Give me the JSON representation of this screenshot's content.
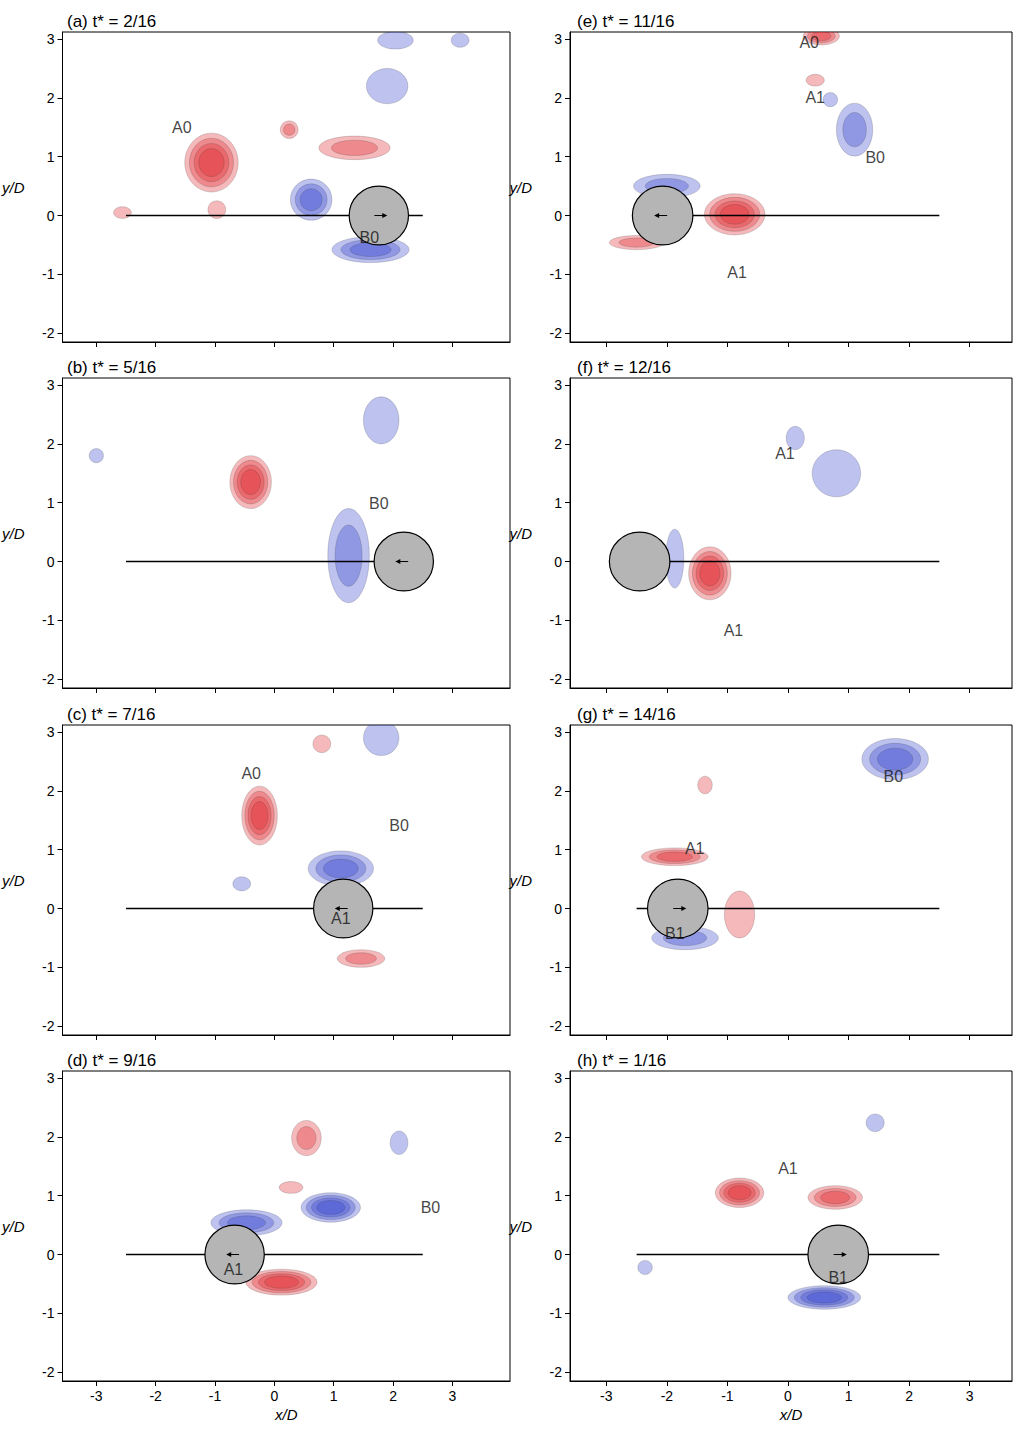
{
  "chart_data": [
    {
      "type": "vortex_field",
      "title": "(a) t* = 2/16",
      "ylabel": "y/D",
      "xlim": [
        -3.57,
        3.97
      ],
      "ylim": [
        -2.15,
        3.12
      ],
      "xticks": [
        -3,
        -2,
        -1,
        0,
        1,
        2,
        3
      ],
      "yticks": [
        -2,
        -1,
        0,
        1,
        2,
        3
      ],
      "tick_labels": "y",
      "path": {
        "x": [
          -2.5,
          2.5
        ],
        "y": [
          0,
          0
        ]
      },
      "cylinder": {
        "x": 1.76,
        "y": 0,
        "diameter": 1,
        "direction": "right"
      },
      "series": [
        {
          "color": "#e0242a",
          "values": [
            [
              -1.06,
              0.9,
              0.45,
              0.5,
              4
            ],
            [
              0.25,
              1.46,
              0.15,
              0.15,
              2
            ],
            [
              1.35,
              1.15,
              0.6,
              0.2,
              2
            ],
            [
              -2.56,
              0.05,
              0.15,
              0.1,
              1
            ],
            [
              -0.97,
              0.1,
              0.15,
              0.15,
              1
            ]
          ]
        },
        {
          "color": "#3340cc",
          "values": [
            [
              0.62,
              0.27,
              0.35,
              0.35,
              3
            ],
            [
              1.62,
              -0.58,
              0.65,
              0.22,
              3
            ],
            [
              2.04,
              2.98,
              0.3,
              0.15,
              1
            ],
            [
              3.13,
              2.98,
              0.15,
              0.12,
              1
            ],
            [
              1.9,
              2.2,
              0.35,
              0.3,
              1
            ]
          ]
        }
      ],
      "labels": [
        {
          "text": "A0",
          "x": -1.56,
          "y": 1.5
        },
        {
          "text": "B0",
          "x": 1.6,
          "y": -0.37
        }
      ]
    },
    {
      "type": "vortex_field",
      "title": "(b) t* = 5/16",
      "ylabel": "y/D",
      "xlim": [
        -3.57,
        3.97
      ],
      "ylim": [
        -2.15,
        3.12
      ],
      "xticks": [
        -3,
        -2,
        -1,
        0,
        1,
        2,
        3
      ],
      "yticks": [
        -2,
        -1,
        0,
        1,
        2,
        3
      ],
      "tick_labels": "y",
      "path": {
        "x": [
          -2.5,
          2.5
        ],
        "y": [
          0,
          0
        ]
      },
      "cylinder": {
        "x": 2.18,
        "y": 0,
        "diameter": 1,
        "direction": "left"
      },
      "series": [
        {
          "color": "#e0242a",
          "values": [
            [
              -0.4,
              1.35,
              0.35,
              0.45,
              4
            ]
          ]
        },
        {
          "color": "#3340cc",
          "values": [
            [
              1.25,
              0.1,
              0.35,
              0.8,
              2
            ],
            [
              1.8,
              2.4,
              0.3,
              0.4,
              1
            ],
            [
              -3.0,
              1.8,
              0.12,
              0.12,
              1
            ]
          ]
        }
      ],
      "labels": [
        {
          "text": "B0",
          "x": 1.76,
          "y": 0.98
        }
      ]
    },
    {
      "type": "vortex_field",
      "title": "(c) t* = 7/16",
      "ylabel": "y/D",
      "xlim": [
        -3.57,
        3.97
      ],
      "ylim": [
        -2.15,
        3.12
      ],
      "xticks": [
        -3,
        -2,
        -1,
        0,
        1,
        2,
        3
      ],
      "yticks": [
        -2,
        -1,
        0,
        1,
        2,
        3
      ],
      "tick_labels": "y",
      "path": {
        "x": [
          -2.5,
          2.5
        ],
        "y": [
          0,
          0
        ]
      },
      "cylinder": {
        "x": 1.16,
        "y": 0,
        "diameter": 1,
        "direction": "left"
      },
      "series": [
        {
          "color": "#e0242a",
          "values": [
            [
              -0.25,
              1.58,
              0.3,
              0.5,
              4
            ],
            [
              1.46,
              -0.85,
              0.4,
              0.15,
              2
            ],
            [
              0.8,
              2.8,
              0.15,
              0.15,
              1
            ]
          ]
        },
        {
          "color": "#3340cc",
          "values": [
            [
              1.12,
              0.68,
              0.55,
              0.3,
              3
            ],
            [
              -0.55,
              0.42,
              0.15,
              0.12,
              1
            ],
            [
              1.8,
              2.9,
              0.3,
              0.3,
              1
            ]
          ]
        }
      ],
      "labels": [
        {
          "text": "A0",
          "x": -0.39,
          "y": 2.29
        },
        {
          "text": "B0",
          "x": 2.1,
          "y": 1.41
        },
        {
          "text": "A1",
          "x": 1.12,
          "y": -0.17
        }
      ]
    },
    {
      "type": "vortex_field",
      "title": "(d) t* = 9/16",
      "xlabel": "x/D",
      "ylabel": "y/D",
      "xlim": [
        -3.57,
        3.97
      ],
      "ylim": [
        -2.15,
        3.12
      ],
      "xticks": [
        -3,
        -2,
        -1,
        0,
        1,
        2,
        3
      ],
      "yticks": [
        -2,
        -1,
        0,
        1,
        2,
        3
      ],
      "path": {
        "x": [
          -2.5,
          2.5
        ],
        "y": [
          0,
          0
        ]
      },
      "cylinder": {
        "x": -0.67,
        "y": 0,
        "diameter": 1,
        "direction": "left"
      },
      "series": [
        {
          "color": "#e0242a",
          "values": [
            [
              0.12,
              -0.47,
              0.6,
              0.22,
              4
            ],
            [
              0.54,
              1.98,
              0.25,
              0.3,
              2
            ],
            [
              0.28,
              1.14,
              0.2,
              0.1,
              1
            ]
          ]
        },
        {
          "color": "#3340cc",
          "values": [
            [
              -0.47,
              0.54,
              0.6,
              0.22,
              3
            ],
            [
              0.95,
              0.8,
              0.5,
              0.25,
              4
            ],
            [
              2.1,
              1.9,
              0.15,
              0.2,
              1
            ]
          ]
        }
      ],
      "labels": [
        {
          "text": "B0",
          "x": 2.63,
          "y": 0.8
        },
        {
          "text": "A1",
          "x": -0.69,
          "y": -0.25
        }
      ]
    },
    {
      "type": "vortex_field",
      "title": "(e) t* = 11/16",
      "ylabel": "y/D",
      "xlim": [
        -3.6,
        3.7
      ],
      "ylim": [
        -2.15,
        3.12
      ],
      "xticks": [
        -3,
        -2,
        -1,
        0,
        1,
        2,
        3
      ],
      "yticks": [
        -2,
        -1,
        0,
        1,
        2,
        3
      ],
      "tick_labels": "y",
      "path": {
        "x": [
          -2.5,
          2.5
        ],
        "y": [
          0,
          0
        ]
      },
      "cylinder": {
        "x": -2.07,
        "y": 0,
        "diameter": 1,
        "direction": "left"
      },
      "series": [
        {
          "color": "#e0242a",
          "values": [
            [
              -0.88,
              0.02,
              0.5,
              0.35,
              4
            ],
            [
              -2.5,
              -0.46,
              0.45,
              0.12,
              2
            ],
            [
              0.55,
              3.05,
              0.3,
              0.15,
              3
            ],
            [
              0.45,
              2.3,
              0.15,
              0.1,
              1
            ]
          ]
        },
        {
          "color": "#3340cc",
          "values": [
            [
              -2.0,
              0.5,
              0.55,
              0.2,
              2
            ],
            [
              1.1,
              1.46,
              0.3,
              0.45,
              2
            ],
            [
              0.7,
              1.97,
              0.12,
              0.12,
              1
            ]
          ]
        }
      ],
      "labels": [
        {
          "text": "A0",
          "x": 0.35,
          "y": 2.95
        },
        {
          "text": "A1",
          "x": 0.45,
          "y": 2.0
        },
        {
          "text": "B0",
          "x": 1.44,
          "y": 0.98
        },
        {
          "text": "A1",
          "x": -0.84,
          "y": -0.97
        }
      ]
    },
    {
      "type": "vortex_field",
      "title": "(f) t* = 12/16",
      "ylabel": "y/D",
      "xlim": [
        -3.6,
        3.7
      ],
      "ylim": [
        -2.15,
        3.12
      ],
      "xticks": [
        -3,
        -2,
        -1,
        0,
        1,
        2,
        3
      ],
      "yticks": [
        -2,
        -1,
        0,
        1,
        2,
        3
      ],
      "tick_labels": "y",
      "path": {
        "x": [
          -2.5,
          2.5
        ],
        "y": [
          0,
          0
        ]
      },
      "cylinder": {
        "x": -2.45,
        "y": 0,
        "diameter": 1,
        "direction": "none"
      },
      "series": [
        {
          "color": "#e0242a",
          "values": [
            [
              -1.29,
              -0.2,
              0.35,
              0.45,
              4
            ]
          ]
        },
        {
          "color": "#3340cc",
          "values": [
            [
              -1.87,
              0.05,
              0.15,
              0.5,
              1
            ],
            [
              0.8,
              1.5,
              0.4,
              0.4,
              1
            ],
            [
              0.12,
              2.1,
              0.15,
              0.2,
              1
            ]
          ]
        }
      ],
      "labels": [
        {
          "text": "A1",
          "x": -0.05,
          "y": 1.83
        },
        {
          "text": "A1",
          "x": -0.9,
          "y": -1.17
        }
      ]
    },
    {
      "type": "vortex_field",
      "title": "(g) t* = 14/16",
      "ylabel": "y/D",
      "xlim": [
        -3.6,
        3.7
      ],
      "ylim": [
        -2.15,
        3.12
      ],
      "xticks": [
        -3,
        -2,
        -1,
        0,
        1,
        2,
        3
      ],
      "yticks": [
        -2,
        -1,
        0,
        1,
        2,
        3
      ],
      "tick_labels": "y",
      "path": {
        "x": [
          -2.5,
          2.5
        ],
        "y": [
          0,
          0
        ]
      },
      "cylinder": {
        "x": -1.82,
        "y": 0,
        "diameter": 1,
        "direction": "right"
      },
      "series": [
        {
          "color": "#e0242a",
          "values": [
            [
              -1.87,
              0.88,
              0.55,
              0.15,
              3
            ],
            [
              -0.8,
              -0.1,
              0.25,
              0.4,
              1
            ],
            [
              -1.37,
              2.1,
              0.12,
              0.15,
              1
            ]
          ]
        },
        {
          "color": "#3340cc",
          "values": [
            [
              -1.7,
              -0.5,
              0.55,
              0.2,
              2
            ],
            [
              1.77,
              2.54,
              0.55,
              0.35,
              3
            ]
          ]
        }
      ],
      "labels": [
        {
          "text": "A1",
          "x": -1.54,
          "y": 1.02
        },
        {
          "text": "B1",
          "x": -1.87,
          "y": -0.42
        },
        {
          "text": "B0",
          "x": 1.74,
          "y": 2.25
        }
      ]
    },
    {
      "type": "vortex_field",
      "title": "(h) t* = 1/16",
      "xlabel": "x/D",
      "ylabel": "y/D",
      "xlim": [
        -3.6,
        3.7
      ],
      "ylim": [
        -2.15,
        3.12
      ],
      "xticks": [
        -3,
        -2,
        -1,
        0,
        1,
        2,
        3
      ],
      "yticks": [
        -2,
        -1,
        0,
        1,
        2,
        3
      ],
      "path": {
        "x": [
          -2.5,
          2.5
        ],
        "y": [
          0,
          0
        ]
      },
      "cylinder": {
        "x": 0.83,
        "y": 0,
        "diameter": 1,
        "direction": "right"
      },
      "series": [
        {
          "color": "#e0242a",
          "values": [
            [
              -0.8,
              1.05,
              0.4,
              0.25,
              4
            ],
            [
              0.78,
              0.97,
              0.45,
              0.2,
              3
            ]
          ]
        },
        {
          "color": "#3340cc",
          "values": [
            [
              0.6,
              -0.73,
              0.6,
              0.2,
              4
            ],
            [
              1.44,
              2.24,
              0.15,
              0.15,
              1
            ],
            [
              -2.36,
              -0.22,
              0.12,
              0.12,
              1
            ]
          ]
        }
      ],
      "labels": [
        {
          "text": "A1",
          "x": 0.0,
          "y": 1.47
        },
        {
          "text": "B1",
          "x": 0.83,
          "y": -0.39
        }
      ]
    }
  ]
}
